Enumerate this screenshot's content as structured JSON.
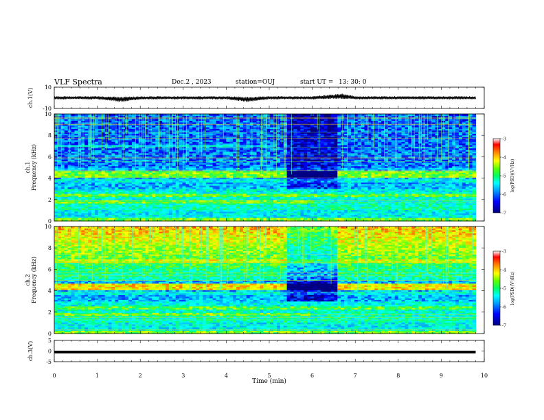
{
  "header": {
    "title": "VLF Spectra",
    "date": "Dec.2 , 2023",
    "station": "station=OUJ",
    "start_label": "start UT =",
    "start_time": "13: 30: 0"
  },
  "chart_data": [
    {
      "type": "line",
      "panel": "ch1-waveform",
      "ylabel": "ch.1(V)",
      "ylim": [
        -10,
        10
      ],
      "yticks": [
        "10",
        "-10"
      ],
      "x": [
        0,
        1,
        1.58,
        2,
        3,
        4,
        4.5,
        5,
        6,
        6.7,
        7,
        8,
        9,
        9.8
      ],
      "y_center": [
        0,
        0,
        -1.5,
        0,
        0,
        0,
        -1.5,
        0,
        0,
        1.5,
        0,
        0,
        0,
        0
      ],
      "y_envelope": [
        1.5,
        1.5,
        2.5,
        1.5,
        1.5,
        1.5,
        2.5,
        1.5,
        1.5,
        2.5,
        1.5,
        1.5,
        1.5,
        1.5
      ],
      "color": "#000000"
    },
    {
      "type": "heatmap",
      "panel": "ch1-spectrogram",
      "ylabel": "ch.1\nFrequency (kHz)",
      "ylim": [
        0,
        10
      ],
      "yticks": [
        "0",
        "2",
        "4",
        "6",
        "8",
        "10"
      ],
      "xlim": [
        0,
        10
      ],
      "data_extent_min": 9.8,
      "colorbar": {
        "label": "log(PSD)(V²/Hz)",
        "range": [
          -7,
          -3
        ],
        "ticks": [
          "-3",
          "-4",
          "-5",
          "-6",
          "-7"
        ]
      }
    },
    {
      "type": "heatmap",
      "panel": "ch2-spectrogram",
      "ylabel": "ch.2\nFrequency (kHz)",
      "ylim": [
        0,
        10
      ],
      "yticks": [
        "0",
        "2",
        "4",
        "6",
        "8",
        "10"
      ],
      "xlim": [
        0,
        10
      ],
      "data_extent_min": 9.8,
      "colorbar": {
        "label": "log(PSD)(V²/Hz)",
        "range": [
          -7,
          -3
        ],
        "ticks": [
          "-3",
          "-4",
          "-5",
          "-6",
          "-7"
        ]
      }
    },
    {
      "type": "line",
      "panel": "ch3-waveform",
      "ylabel": "ch.3(V)",
      "ylim": [
        -5,
        5
      ],
      "yticks": [
        "5",
        "0",
        "-5"
      ],
      "x": [
        0,
        9.8
      ],
      "y": [
        -0.5,
        -0.5
      ],
      "color": "#000000"
    }
  ],
  "xaxis": {
    "label": "Time (min)",
    "range": [
      0,
      10
    ],
    "ticks": [
      "0",
      "1",
      "2",
      "3",
      "4",
      "5",
      "6",
      "7",
      "8",
      "9",
      "10"
    ]
  },
  "colormap": [
    "#000080",
    "#0000ff",
    "#00a0ff",
    "#00ffff",
    "#00ff80",
    "#80ff00",
    "#ffff00",
    "#ff8000",
    "#ff0000",
    "#ffffff"
  ]
}
